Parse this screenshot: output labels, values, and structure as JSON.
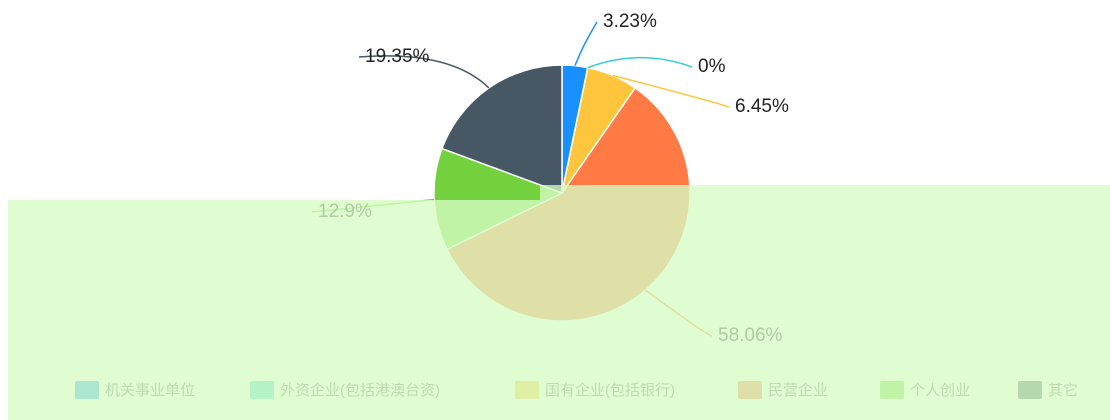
{
  "chart_data": {
    "type": "pie",
    "categories": [
      "机关事业单位",
      "外资企业(包括港澳台资)",
      "国有企业(包括银行)",
      "民营企业",
      "个人创业",
      "其它"
    ],
    "values": [
      3.23,
      0,
      6.45,
      58.06,
      12.9,
      19.35
    ],
    "value_labels": [
      "3.23%",
      "0%",
      "6.45%",
      "58.06%",
      "12.9%",
      "19.35%"
    ],
    "colors": [
      "#1890ff",
      "#36cfc9",
      "#ffc53d",
      "#ff7a45",
      "#73d13d",
      "#475864"
    ],
    "legend": "bottom"
  }
}
